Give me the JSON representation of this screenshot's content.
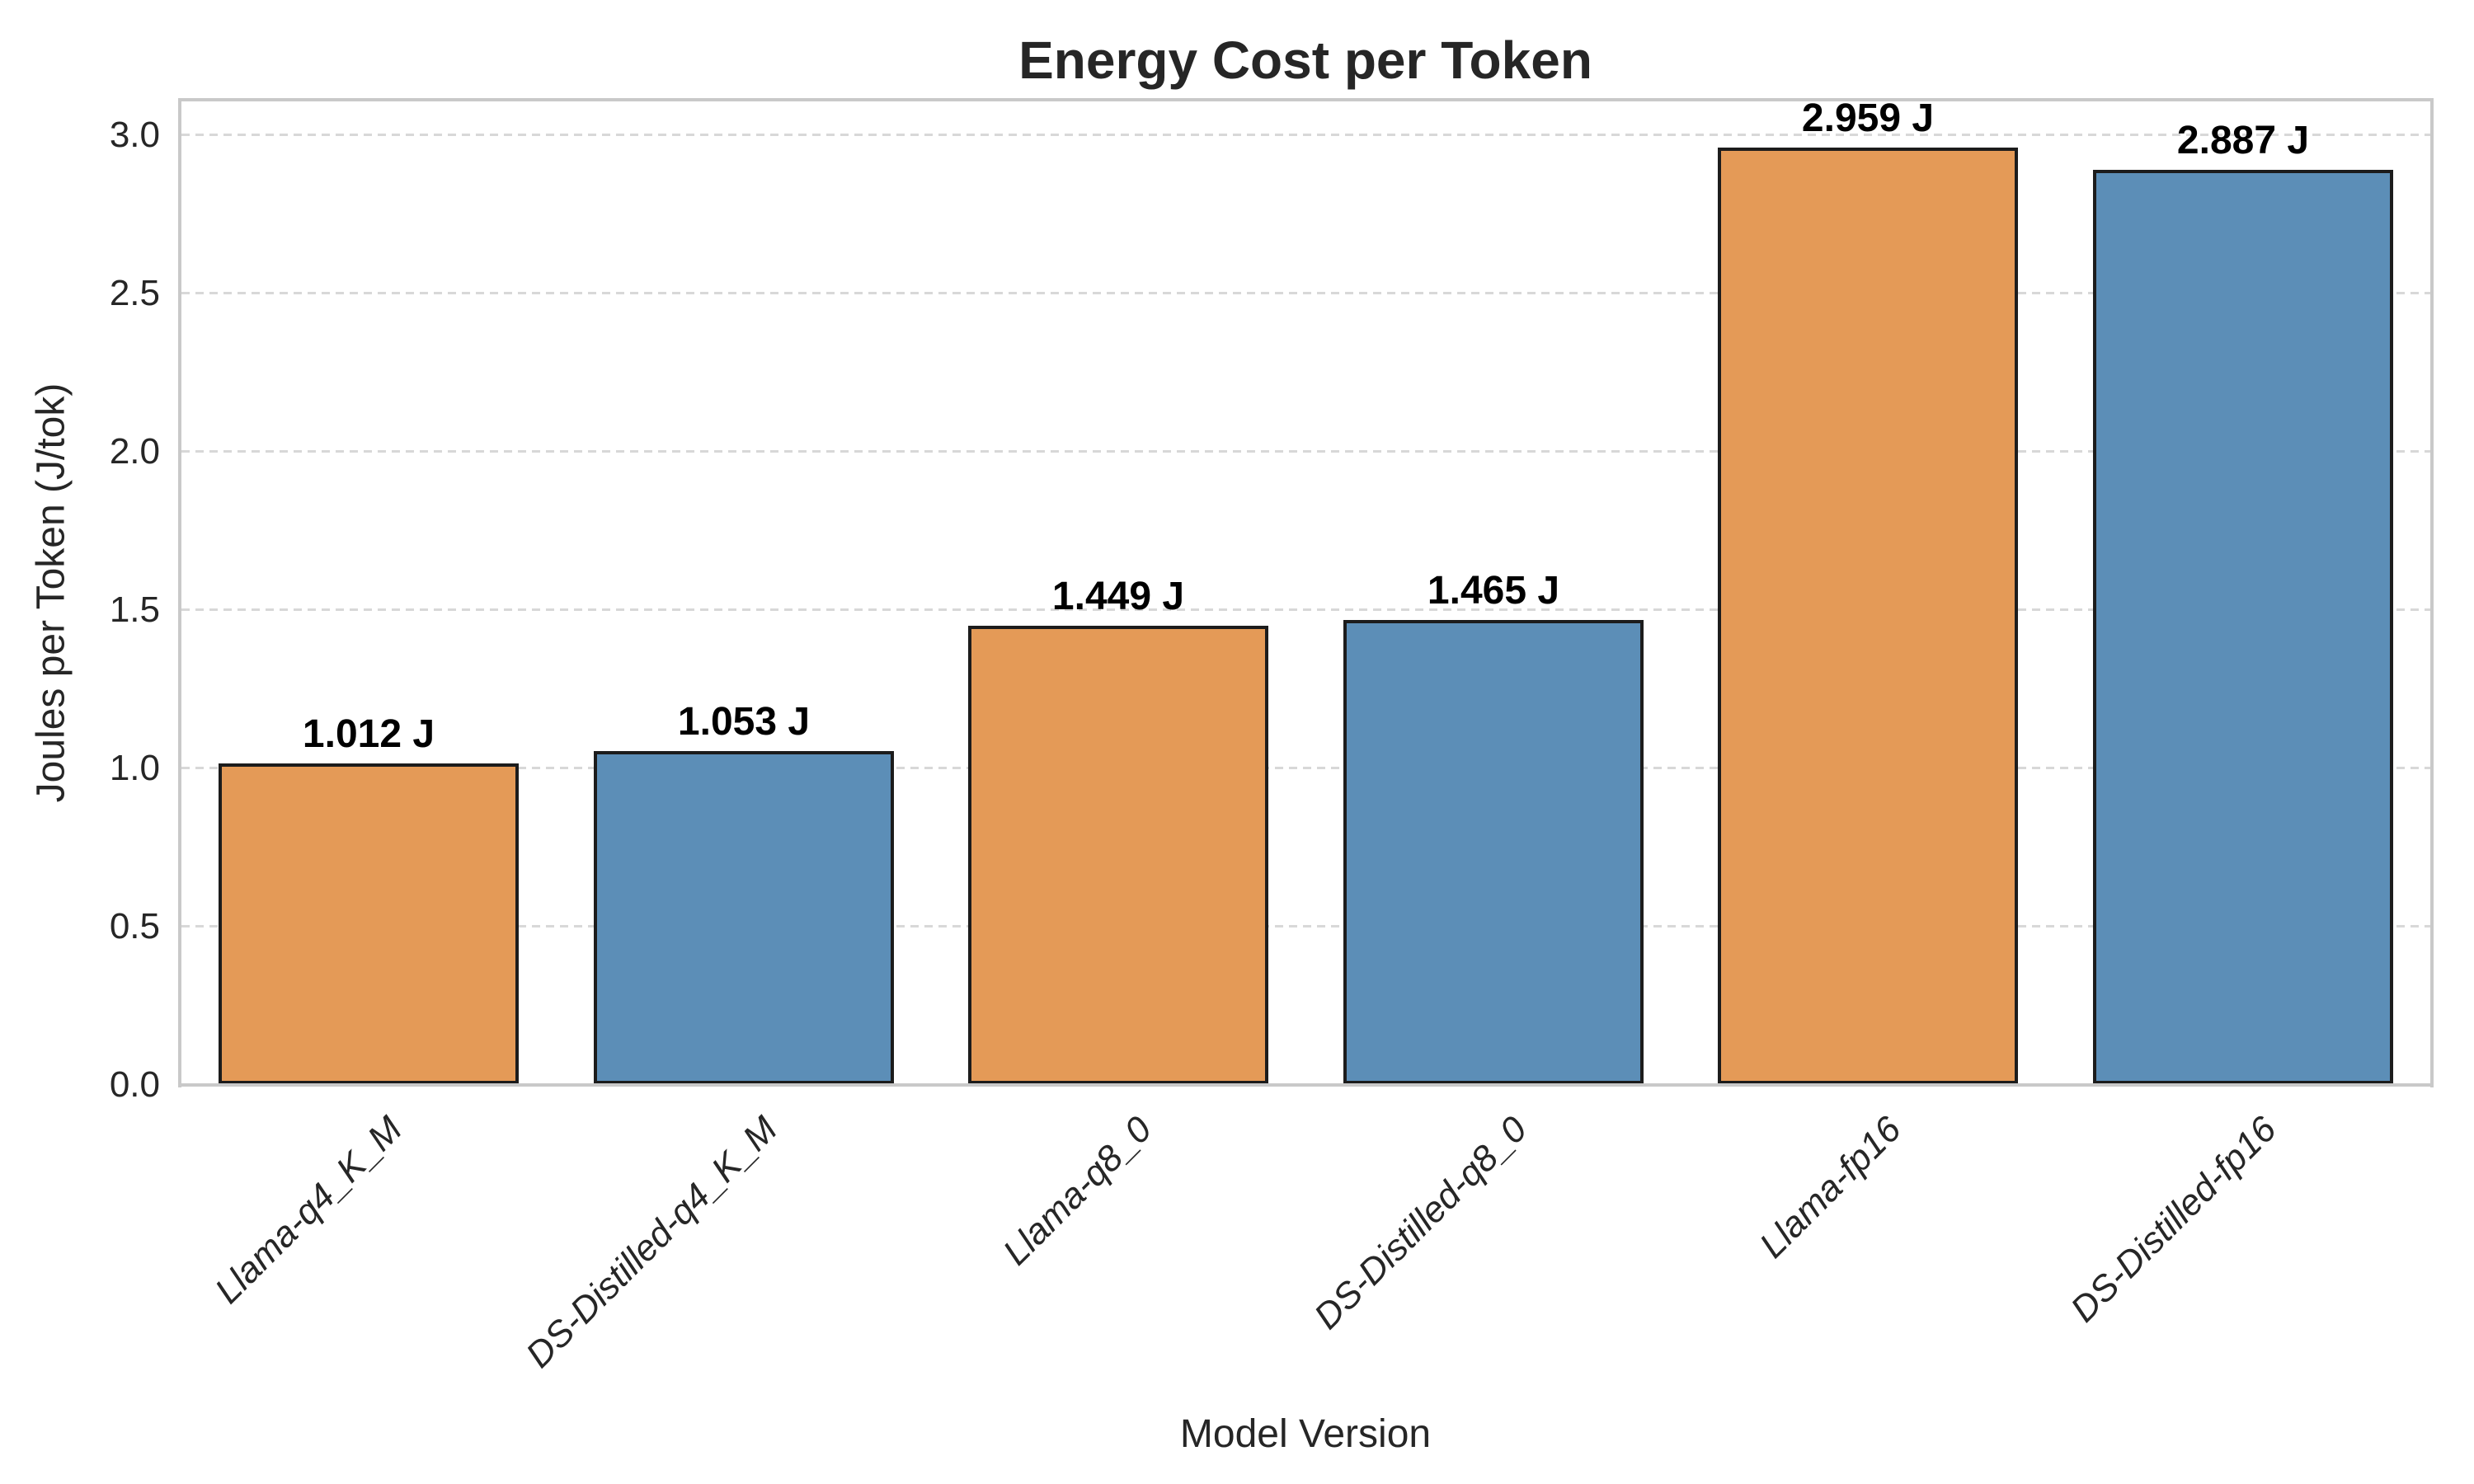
{
  "chart_data": {
    "type": "bar",
    "title": "Energy Cost per Token",
    "xlabel": "Model Version",
    "ylabel": "Joules per Token (J/tok)",
    "categories": [
      "Llama-q4_K_M",
      "DS-Distilled-q4_K_M",
      "Llama-q8_0",
      "DS-Distilled-q8_0",
      "Llama-fp16",
      "DS-Distilled-fp16"
    ],
    "values": [
      1.012,
      1.053,
      1.449,
      1.465,
      2.959,
      2.887
    ],
    "bar_labels": [
      "1.012 J",
      "1.053 J",
      "1.449 J",
      "1.465 J",
      "2.959 J",
      "2.887 J"
    ],
    "bar_colors": [
      "#E49A57",
      "#5C8EB7",
      "#E49A57",
      "#5C8EB7",
      "#E49A57",
      "#5C8EB7"
    ],
    "edge_color": "#1C1C1C",
    "ylim": [
      0,
      3.104
    ],
    "yticks": [
      "0.0",
      "0.5",
      "1.0",
      "1.5",
      "2.0",
      "2.5",
      "3.0"
    ],
    "grid": {
      "axis": "y",
      "style": "dashed",
      "color": "#D8D8D8"
    },
    "spine_color": "#C9C9C9",
    "text_color": "#262626",
    "background": "#FFFFFF",
    "legend": "none"
  }
}
